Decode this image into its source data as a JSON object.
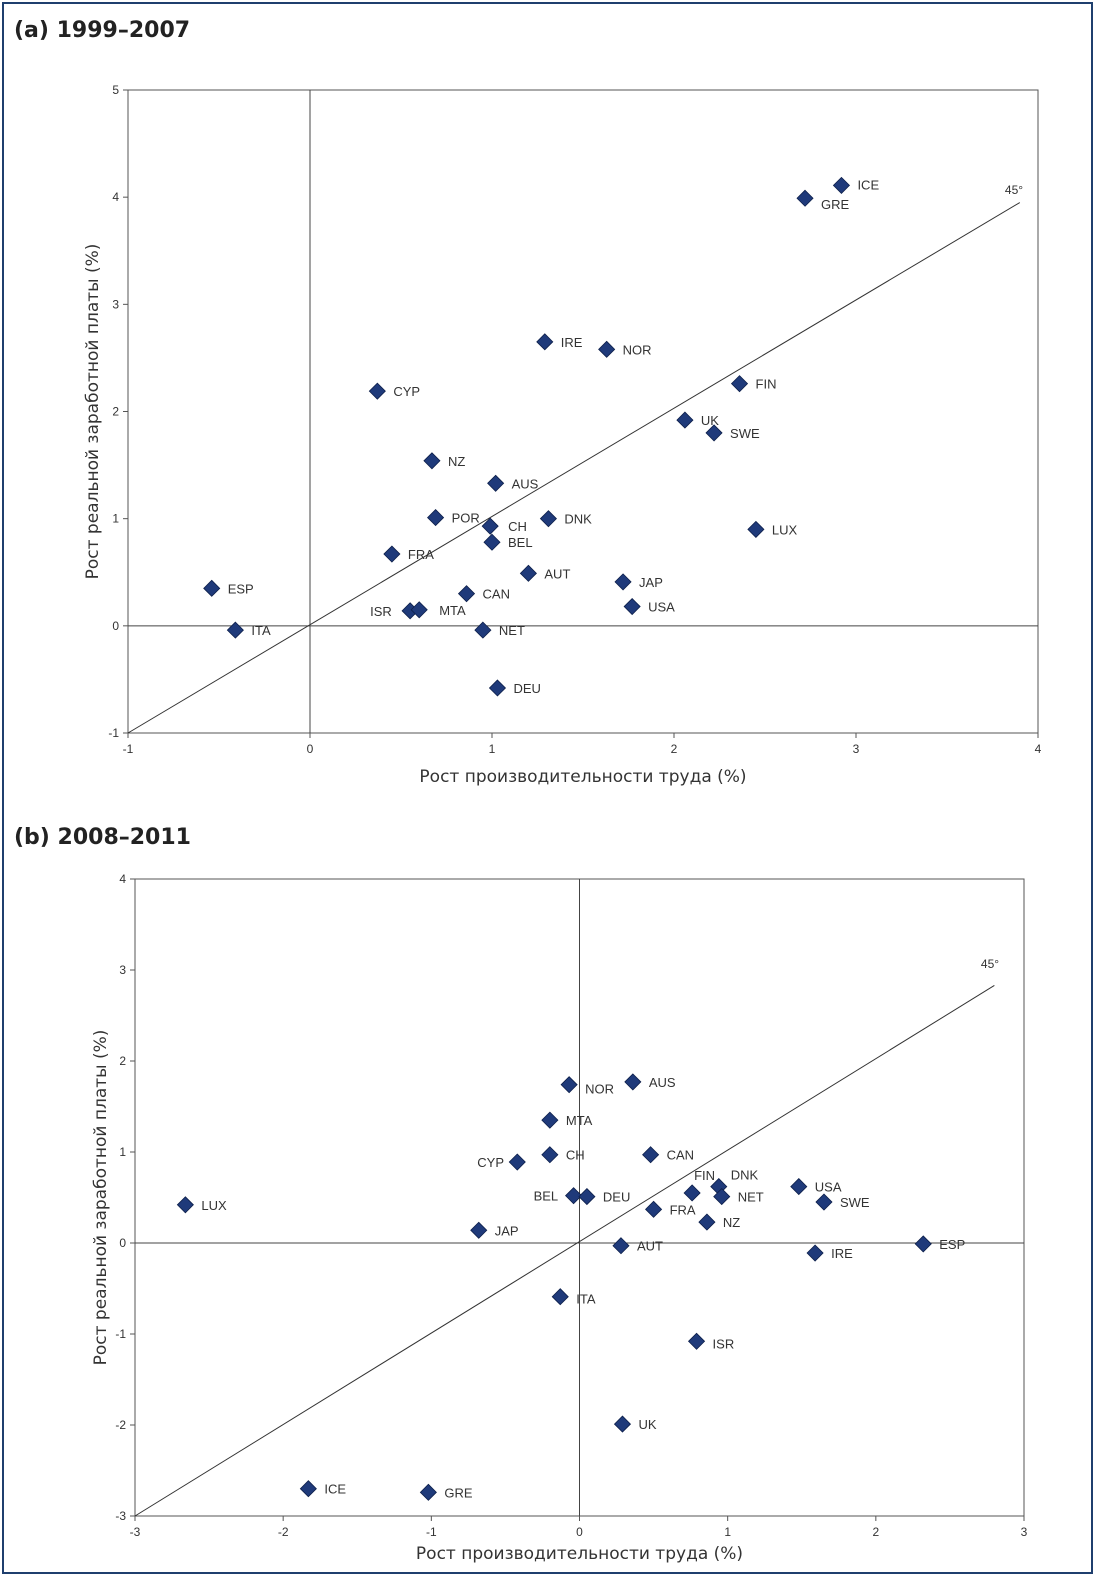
{
  "marker_color": "#1f3a7a",
  "chart_data": [
    {
      "type": "scatter",
      "title": "(a) 1999–2007",
      "xlabel": "Рост производительности труда (%)",
      "ylabel": "Рост реальной заработной платы (%)",
      "xlim": [
        -1,
        4
      ],
      "ylim": [
        -1,
        5
      ],
      "xticks": [
        "-1",
        "0",
        "1",
        "2",
        "3",
        "4"
      ],
      "yticks": [
        "-1",
        "0",
        "1",
        "2",
        "3",
        "4",
        "5"
      ],
      "reference_line": {
        "label": "45°",
        "x": [
          -1,
          3.9
        ],
        "y": [
          -1,
          3.95
        ]
      },
      "points": [
        {
          "label": "ICE",
          "x": 2.92,
          "y": 4.11
        },
        {
          "label": "GRE",
          "x": 2.72,
          "y": 3.99
        },
        {
          "label": "IRE",
          "x": 1.29,
          "y": 2.65
        },
        {
          "label": "NOR",
          "x": 1.63,
          "y": 2.58
        },
        {
          "label": "FIN",
          "x": 2.36,
          "y": 2.26
        },
        {
          "label": "CYP",
          "x": 0.37,
          "y": 2.19
        },
        {
          "label": "UK",
          "x": 2.06,
          "y": 1.92
        },
        {
          "label": "SWE",
          "x": 2.22,
          "y": 1.8
        },
        {
          "label": "NZ",
          "x": 0.67,
          "y": 1.54
        },
        {
          "label": "AUS",
          "x": 1.02,
          "y": 1.33
        },
        {
          "label": "POR",
          "x": 0.69,
          "y": 1.01
        },
        {
          "label": "DNK",
          "x": 1.31,
          "y": 1.0
        },
        {
          "label": "CH",
          "x": 0.99,
          "y": 0.93
        },
        {
          "label": "LUX",
          "x": 2.45,
          "y": 0.9
        },
        {
          "label": "BEL",
          "x": 1.0,
          "y": 0.78
        },
        {
          "label": "FRA",
          "x": 0.45,
          "y": 0.67
        },
        {
          "label": "AUT",
          "x": 1.2,
          "y": 0.49
        },
        {
          "label": "JAP",
          "x": 1.72,
          "y": 0.41
        },
        {
          "label": "ESP",
          "x": -0.54,
          "y": 0.35
        },
        {
          "label": "CAN",
          "x": 0.86,
          "y": 0.3
        },
        {
          "label": "USA",
          "x": 1.77,
          "y": 0.18
        },
        {
          "label": "ISR",
          "x": 0.55,
          "y": 0.14
        },
        {
          "label": "MTA",
          "x": 0.6,
          "y": 0.15
        },
        {
          "label": "ITA",
          "x": -0.41,
          "y": -0.04
        },
        {
          "label": "NET",
          "x": 0.95,
          "y": -0.04
        },
        {
          "label": "DEU",
          "x": 1.03,
          "y": -0.58
        }
      ]
    },
    {
      "type": "scatter",
      "title": "(b) 2008–2011",
      "xlabel": "Рост производительности труда (%)",
      "ylabel": "Рост реальной заработной платы (%)",
      "xlim": [
        -3,
        3
      ],
      "ylim": [
        -3,
        4
      ],
      "xticks": [
        "-3",
        "-2",
        "-1",
        "0",
        "1",
        "2",
        "3"
      ],
      "yticks": [
        "-3",
        "-2",
        "-1",
        "0",
        "1",
        "2",
        "3",
        "4"
      ],
      "reference_line": {
        "label": "45°",
        "x": [
          -3,
          2.8
        ],
        "y": [
          -3,
          2.83
        ]
      },
      "points": [
        {
          "label": "AUS",
          "x": 0.36,
          "y": 1.77
        },
        {
          "label": "NOR",
          "x": -0.07,
          "y": 1.74
        },
        {
          "label": "MTA",
          "x": -0.2,
          "y": 1.35
        },
        {
          "label": "CH",
          "x": -0.2,
          "y": 0.97
        },
        {
          "label": "CAN",
          "x": 0.48,
          "y": 0.97
        },
        {
          "label": "CYP",
          "x": -0.42,
          "y": 0.89
        },
        {
          "label": "USA",
          "x": 1.48,
          "y": 0.62
        },
        {
          "label": "DNK",
          "x": 0.94,
          "y": 0.62
        },
        {
          "label": "FIN",
          "x": 0.76,
          "y": 0.55
        },
        {
          "label": "BEL",
          "x": -0.04,
          "y": 0.52
        },
        {
          "label": "NET",
          "x": 0.96,
          "y": 0.51
        },
        {
          "label": "DEU",
          "x": 0.05,
          "y": 0.51
        },
        {
          "label": "SWE",
          "x": 1.65,
          "y": 0.45
        },
        {
          "label": "LUX",
          "x": -2.66,
          "y": 0.42
        },
        {
          "label": "FRA",
          "x": 0.5,
          "y": 0.37
        },
        {
          "label": "NZ",
          "x": 0.86,
          "y": 0.23
        },
        {
          "label": "JAP",
          "x": -0.68,
          "y": 0.14
        },
        {
          "label": "ESP",
          "x": 2.32,
          "y": -0.01
        },
        {
          "label": "AUT",
          "x": 0.28,
          "y": -0.03
        },
        {
          "label": "IRE",
          "x": 1.59,
          "y": -0.11
        },
        {
          "label": "ITA",
          "x": -0.13,
          "y": -0.59
        },
        {
          "label": "ISR",
          "x": 0.79,
          "y": -1.08
        },
        {
          "label": "UK",
          "x": 0.29,
          "y": -1.99
        },
        {
          "label": "ICE",
          "x": -1.83,
          "y": -2.7
        },
        {
          "label": "GRE",
          "x": -1.02,
          "y": -2.74
        }
      ]
    }
  ]
}
